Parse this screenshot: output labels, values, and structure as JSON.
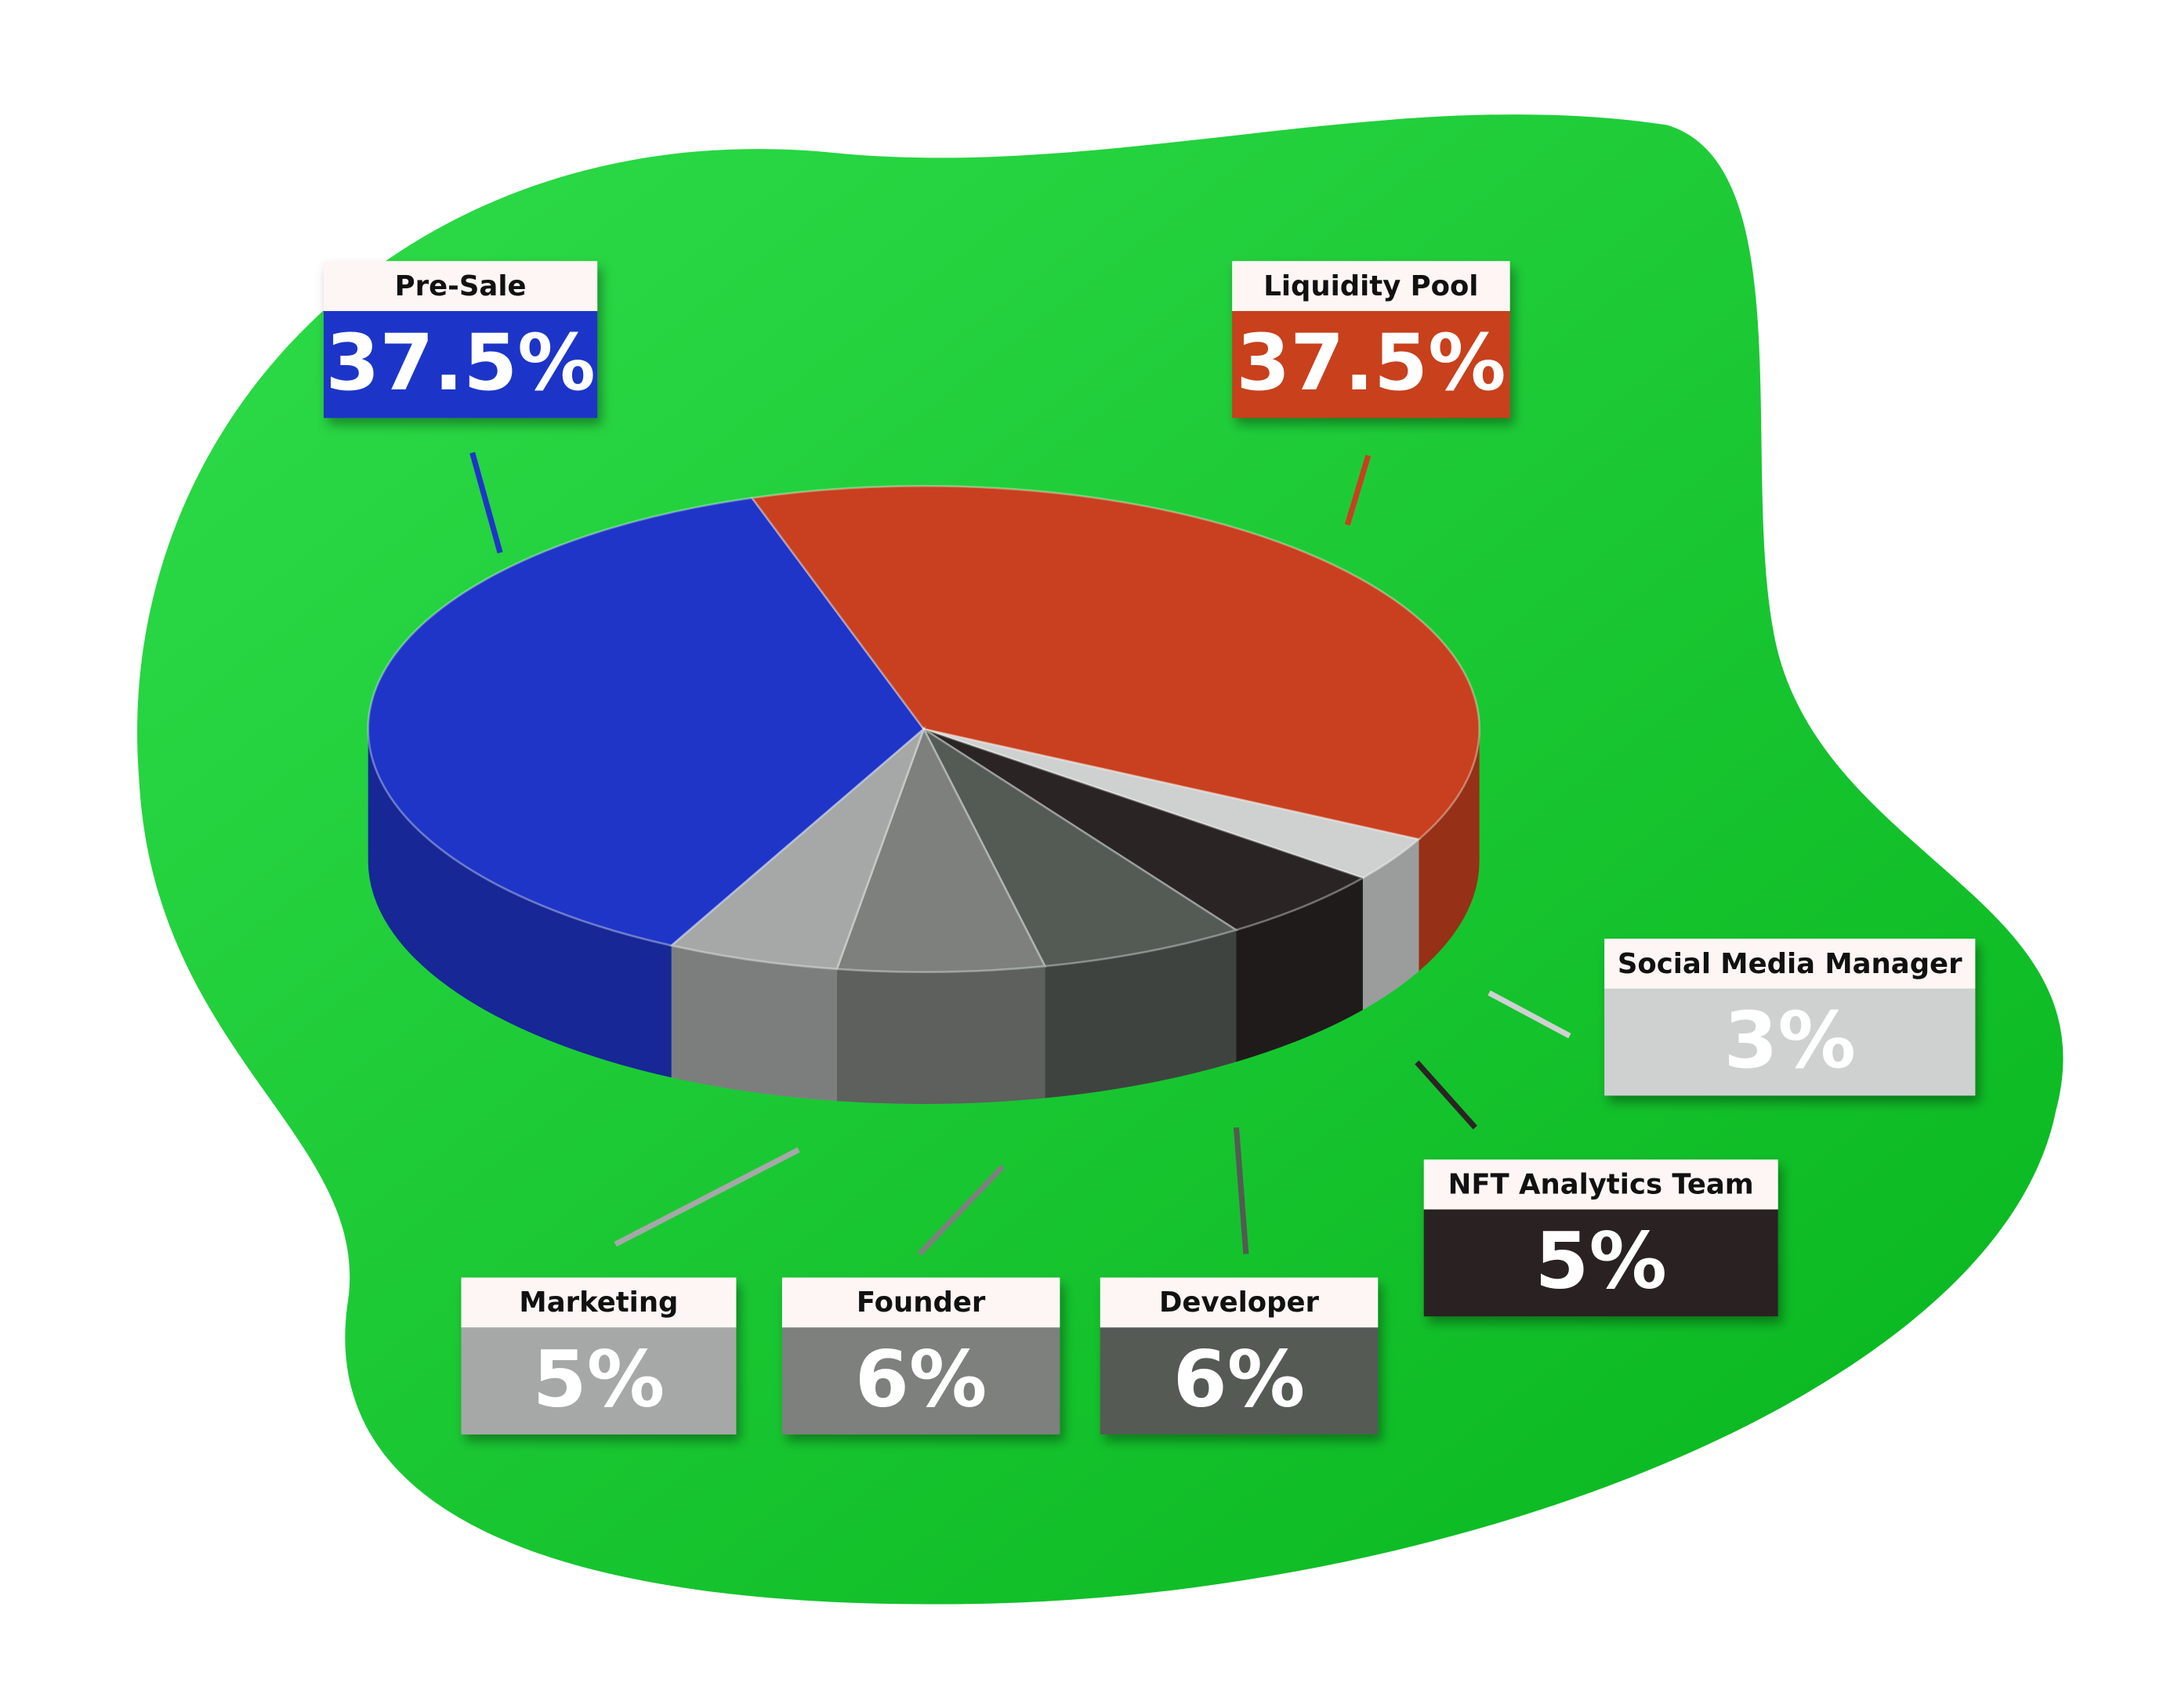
{
  "chart_data": {
    "type": "pie",
    "categories": [
      "Pre-Sale",
      "Liquidity Pool",
      "Social Media Manager",
      "NFT Analytics Team",
      "Developer",
      "Founder",
      "Marketing"
    ],
    "values": [
      37.5,
      37.5,
      3,
      5,
      6,
      6,
      5
    ],
    "value_labels": [
      "37.5%",
      "37.5%",
      "3%",
      "5%",
      "6%",
      "6%",
      "5%"
    ],
    "colors": [
      "#1f35c8",
      "#c8401f",
      "#cfd1d1",
      "#2a2424",
      "#545a54",
      "#7d807d",
      "#a6a8a8"
    ]
  }
}
